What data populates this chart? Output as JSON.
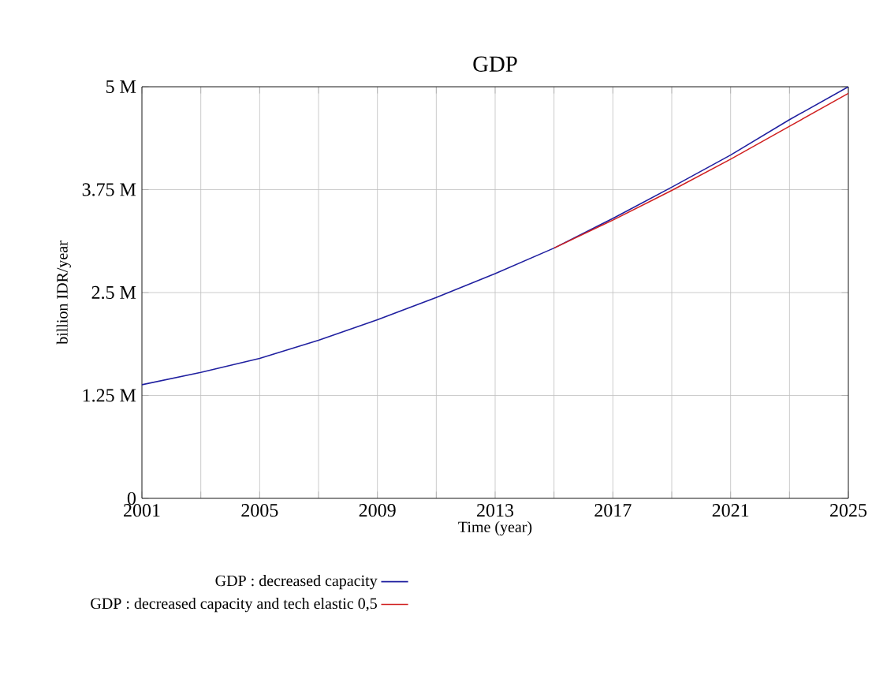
{
  "chart_data": {
    "type": "line",
    "title": "GDP",
    "xlabel": "Time (year)",
    "ylabel": "billion IDR/year",
    "x": [
      2001,
      2003,
      2005,
      2007,
      2009,
      2011,
      2013,
      2015,
      2017,
      2019,
      2021,
      2023,
      2025
    ],
    "series": [
      {
        "name": "GDP : decreased capacity",
        "color": "#2020a0",
        "values": [
          1380000,
          1530000,
          1700000,
          1920000,
          2170000,
          2440000,
          2730000,
          3040000,
          3400000,
          3780000,
          4170000,
          4600000,
          5000000
        ]
      },
      {
        "name": "GDP : decreased capacity and tech elastic 0,5",
        "color": "#d02020",
        "values": [
          null,
          null,
          null,
          null,
          null,
          null,
          null,
          3040000,
          3380000,
          3740000,
          4120000,
          4520000,
          4920000
        ]
      }
    ],
    "xlim": [
      2001,
      2025
    ],
    "xticks": [
      2001,
      {
        "value": 2003,
        "label": null
      },
      2005,
      {
        "value": 2007,
        "label": null
      },
      2009,
      {
        "value": 2011,
        "label": null
      },
      2013,
      {
        "value": 2015,
        "label": null
      },
      2017,
      {
        "value": 2019,
        "label": null
      },
      2021,
      {
        "value": 2023,
        "label": null
      },
      2025
    ],
    "ylim": [
      0,
      5000000
    ],
    "yticks": [
      {
        "value": 0,
        "label": "0"
      },
      {
        "value": 1250000,
        "label": "1.25 M"
      },
      {
        "value": 2500000,
        "label": "2.5 M"
      },
      {
        "value": 3750000,
        "label": "3.75 M"
      },
      {
        "value": 5000000,
        "label": "5 M"
      }
    ],
    "grid": true,
    "legend": "bottom",
    "marker": "none",
    "line_style": "solid"
  }
}
